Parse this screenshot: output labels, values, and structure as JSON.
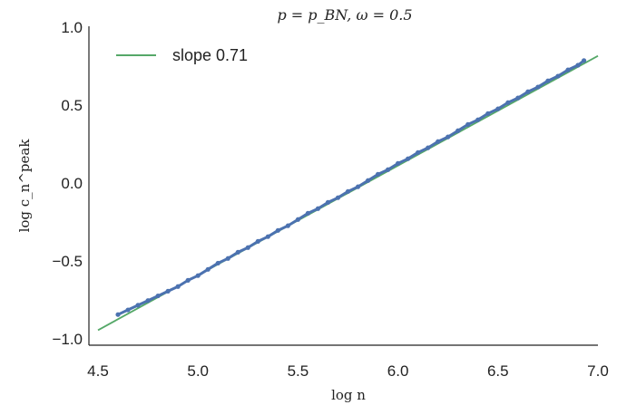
{
  "chart_data": {
    "type": "scatter",
    "title": "p = p_BN, ω = 0.5",
    "xlabel": "log n",
    "ylabel": "log c_n^peak",
    "xlim": [
      4.5,
      7.0
    ],
    "ylim": [
      -1.0,
      1.0
    ],
    "xticks": [
      4.5,
      5.0,
      5.5,
      6.0,
      6.5,
      7.0
    ],
    "yticks": [
      -1.0,
      -0.5,
      0.0,
      0.5,
      1.0
    ],
    "xtick_labels": [
      "4.5",
      "5.0",
      "5.5",
      "6.0",
      "6.5",
      "7.0"
    ],
    "ytick_labels": [
      "−1.0",
      "−0.5",
      "0.0",
      "0.5",
      "1.0"
    ],
    "grid": false,
    "legend_position": "top-left",
    "series": [
      {
        "role": "data points",
        "color": "#4c72b0",
        "x": [
          4.6,
          4.65,
          4.7,
          4.75,
          4.8,
          4.85,
          4.9,
          4.95,
          5.0,
          5.05,
          5.1,
          5.15,
          5.2,
          5.25,
          5.3,
          5.35,
          5.4,
          5.45,
          5.5,
          5.55,
          5.6,
          5.65,
          5.7,
          5.75,
          5.8,
          5.85,
          5.9,
          5.95,
          6.0,
          6.05,
          6.1,
          6.15,
          6.2,
          6.25,
          6.3,
          6.35,
          6.4,
          6.45,
          6.5,
          6.55,
          6.6,
          6.65,
          6.7,
          6.75,
          6.8,
          6.85,
          6.9,
          6.93
        ],
        "y": [
          -0.85,
          -0.82,
          -0.79,
          -0.76,
          -0.73,
          -0.7,
          -0.67,
          -0.63,
          -0.6,
          -0.56,
          -0.52,
          -0.49,
          -0.45,
          -0.42,
          -0.38,
          -0.35,
          -0.31,
          -0.28,
          -0.24,
          -0.2,
          -0.17,
          -0.13,
          -0.1,
          -0.06,
          -0.03,
          0.01,
          0.05,
          0.08,
          0.12,
          0.15,
          0.19,
          0.22,
          0.26,
          0.29,
          0.33,
          0.37,
          0.4,
          0.44,
          0.47,
          0.51,
          0.54,
          0.58,
          0.61,
          0.65,
          0.68,
          0.72,
          0.75,
          0.78
        ]
      },
      {
        "name": "slope 0.71",
        "role": "fit line",
        "color": "#55a868",
        "x": [
          4.5,
          7.0
        ],
        "y": [
          -0.95,
          0.81
        ]
      }
    ]
  }
}
